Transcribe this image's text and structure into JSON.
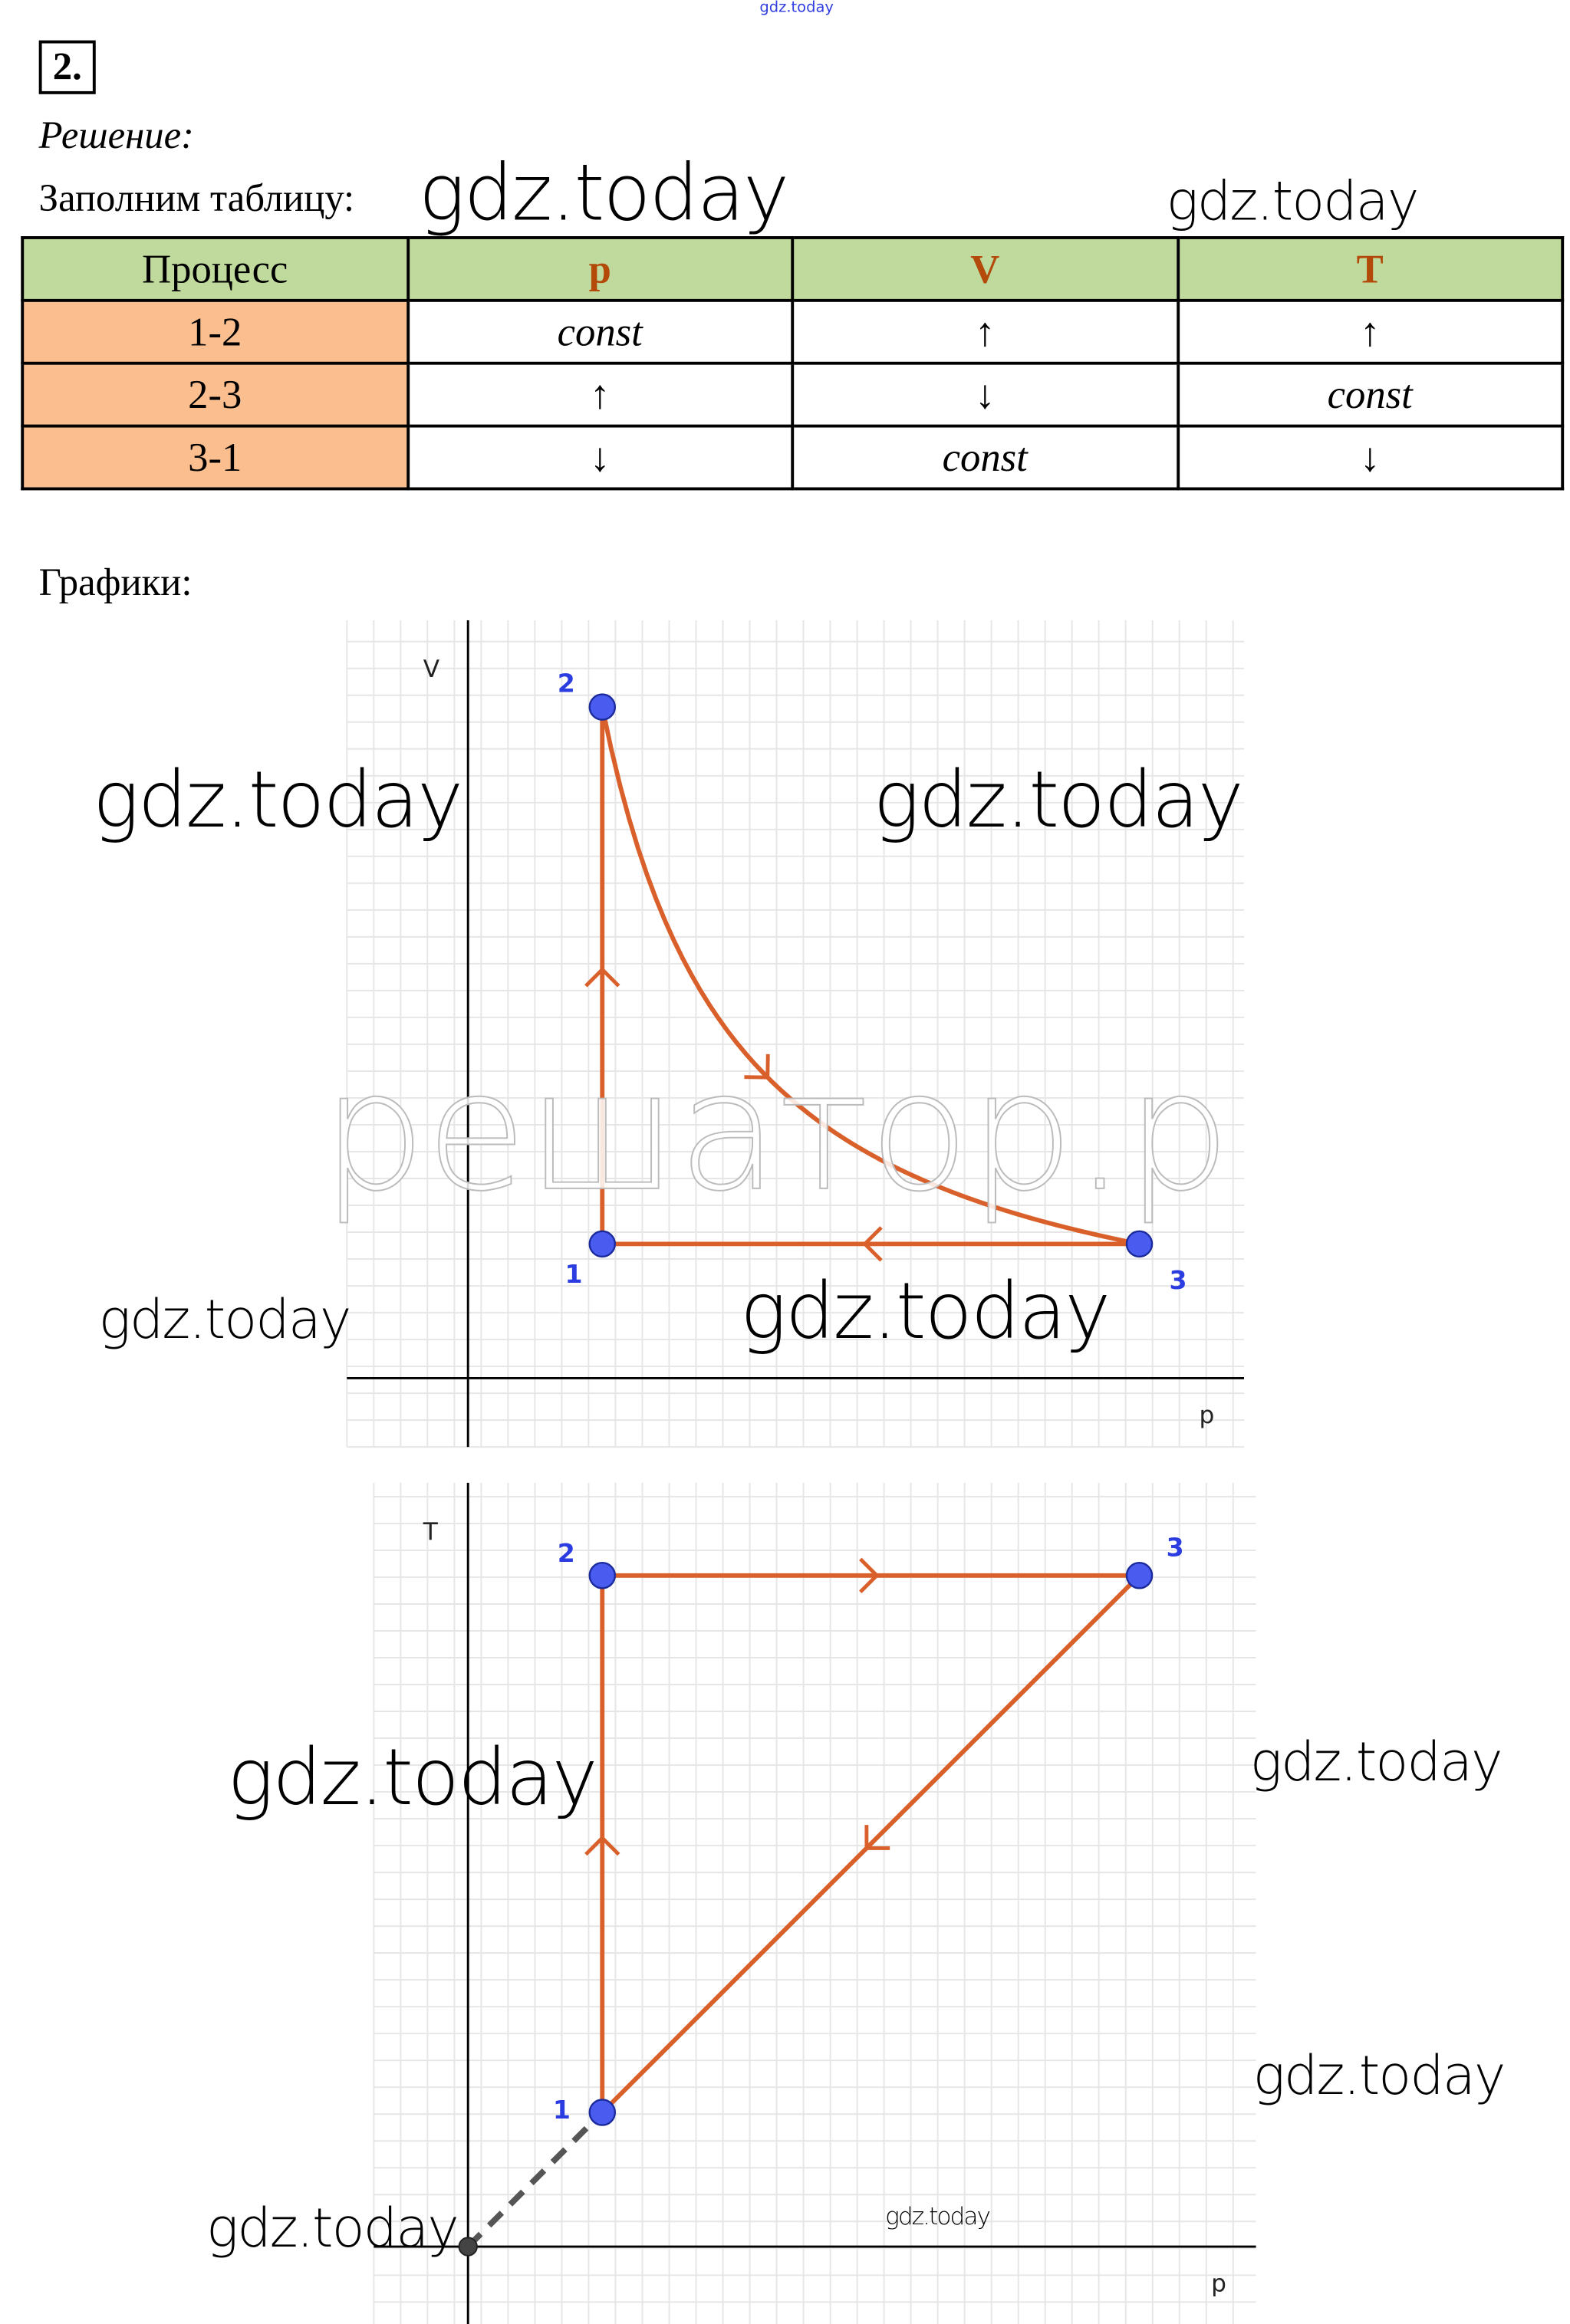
{
  "header": {
    "top_watermark": "gdz.today",
    "task_number": "2.",
    "solution_label": "Решение:",
    "fill_table_label": "Заполним таблицу:",
    "graphs_label": "Графики:"
  },
  "table": {
    "headers": [
      "Процесс",
      "p",
      "V",
      "T"
    ],
    "rows": [
      {
        "process": "1-2",
        "p": "const",
        "V": "↑",
        "T": "↑"
      },
      {
        "process": "2-3",
        "p": "↑",
        "V": "↓",
        "T": "const"
      },
      {
        "process": "3-1",
        "p": "↓",
        "V": "const",
        "T": "↓"
      }
    ]
  },
  "watermarks": [
    "gdz.today",
    "gdz.today",
    "gdz.today",
    "gdz.today",
    "gdz.today",
    "gdz.today",
    "gdz.today",
    "gdz.today",
    "gdz.today",
    "gdz.today",
    "gdz.today"
  ],
  "faded_watermark": "решатор.р",
  "colors": {
    "curve": "#d9602a",
    "point": "#4a5cf0",
    "label": "#2b3de0",
    "header_bg": "#c0d99c",
    "process_bg": "#fbbf8f",
    "var_text": "#b34a0a"
  },
  "chart_data": [
    {
      "type": "line",
      "xlabel": "p",
      "ylabel": "V",
      "grid": true,
      "points": [
        {
          "label": "1",
          "x": 1,
          "y": 1
        },
        {
          "label": "2",
          "x": 1,
          "y": 5
        },
        {
          "label": "3",
          "x": 5,
          "y": 1
        }
      ],
      "segments": [
        {
          "from": "1",
          "to": "2",
          "kind": "line"
        },
        {
          "from": "2",
          "to": "3",
          "kind": "hyperbola"
        },
        {
          "from": "3",
          "to": "1",
          "kind": "line"
        }
      ]
    },
    {
      "type": "line",
      "xlabel": "p",
      "ylabel": "T",
      "grid": true,
      "points": [
        {
          "label": "1",
          "x": 1,
          "y": 1
        },
        {
          "label": "2",
          "x": 1,
          "y": 5
        },
        {
          "label": "3",
          "x": 5,
          "y": 5
        }
      ],
      "segments": [
        {
          "from": "1",
          "to": "2",
          "kind": "line"
        },
        {
          "from": "2",
          "to": "3",
          "kind": "line"
        },
        {
          "from": "3",
          "to": "1",
          "kind": "line"
        }
      ],
      "extension": {
        "from": "origin",
        "to": "1",
        "style": "dashed"
      }
    }
  ]
}
